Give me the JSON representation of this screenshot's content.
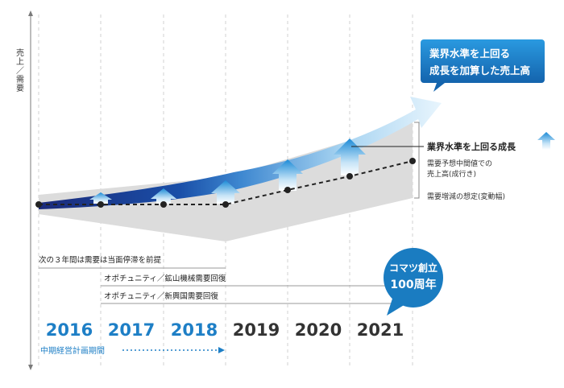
{
  "axis": {
    "ylabel": "売上／需要"
  },
  "callout_top": {
    "line1": "業界水準を上回る",
    "line2": "成長を加算した売上高"
  },
  "labels": {
    "growth": "業界水準を上回る成長",
    "forecast_line1": "需要予想中間値での",
    "forecast_line2": "売上高(成行き)",
    "range": "需要増減の想定(変動幅)"
  },
  "notes": {
    "note1": "次の３年間は需要は当面停滞を前提",
    "note2": "オポチュニティ／鉱山機械需要回復",
    "note3": "オポチュニティ／新興国需要回復"
  },
  "badge": {
    "line1": "コマツ創立",
    "line2": "100周年"
  },
  "years": [
    "2016",
    "2017",
    "2018",
    "2019",
    "2020",
    "2021"
  ],
  "plan_label": "中期経営計画期間",
  "colors": {
    "plan_years": "#1e7fc6",
    "other_years": "#333333",
    "badge": "#1a7cc1"
  },
  "chart_data": {
    "type": "line",
    "categories": [
      "2016",
      "2017",
      "2018",
      "2019",
      "2020",
      "2021"
    ],
    "series": [
      {
        "name": "需要予想中間値での売上高(成行き)",
        "values": [
          0,
          0,
          0,
          0.3,
          0.65,
          1.0
        ]
      }
    ]
  }
}
